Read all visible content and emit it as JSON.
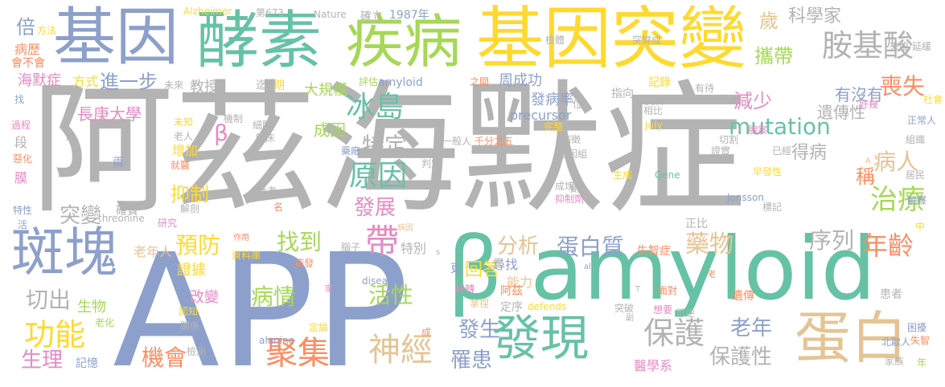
{
  "words": [
    {
      "text": "阿茲海默症",
      "color": "#b3b3b3"
    },
    {
      "text": "APP",
      "color": "#8da0cb"
    },
    {
      "text": "β amyloid",
      "color": "#66c2a5"
    },
    {
      "text": "基因突變",
      "color": "#ffd92f"
    },
    {
      "text": "酵素",
      "color": "#66c2a5"
    },
    {
      "text": "疾病",
      "color": "#a6d854"
    },
    {
      "text": "基因",
      "color": "#8da0cb"
    },
    {
      "text": "斑塊",
      "color": "#8da0cb"
    },
    {
      "text": "蛋白",
      "color": "#e5c494"
    },
    {
      "text": "發現",
      "color": "#66c2a5"
    },
    {
      "text": "胺基酸",
      "color": "#b3b3b3"
    },
    {
      "text": "冰島",
      "color": "#66c2a5"
    },
    {
      "text": "聚集",
      "color": "#fc8d62"
    },
    {
      "text": "神經",
      "color": "#e5c494"
    },
    {
      "text": "保護",
      "color": "#b3b3b3"
    },
    {
      "text": "功能",
      "color": "#ffd92f"
    },
    {
      "text": "原因",
      "color": "#66c2a5"
    },
    {
      "text": "mutation",
      "color": "#66c2a5"
    },
    {
      "text": "喪失",
      "color": "#fc8d62"
    },
    {
      "text": "治療",
      "color": "#a6d854"
    },
    {
      "text": "病人",
      "color": "#e5c494"
    },
    {
      "text": "年齡",
      "color": "#fc8d62"
    },
    {
      "text": "藥物",
      "color": "#e5c494"
    },
    {
      "text": "序列",
      "color": "#b3b3b3"
    },
    {
      "text": "蛋白質",
      "color": "#8da0cb"
    },
    {
      "text": "分析",
      "color": "#e5c494"
    },
    {
      "text": "找到",
      "color": "#a6d854"
    },
    {
      "text": "預防",
      "color": "#ffd92f"
    },
    {
      "text": "抑制",
      "color": "#ffd92f"
    },
    {
      "text": "活性",
      "color": "#a6d854"
    },
    {
      "text": "發展",
      "color": "#e78ac3"
    },
    {
      "text": "帶",
      "color": "#e78ac3"
    },
    {
      "text": "突變",
      "color": "#b3b3b3"
    },
    {
      "text": "切出",
      "color": "#b3b3b3"
    },
    {
      "text": "生理",
      "color": "#e78ac3"
    },
    {
      "text": "機會",
      "color": "#fc8d62"
    },
    {
      "text": "罹患",
      "color": "#8da0cb"
    },
    {
      "text": "發生",
      "color": "#8da0cb"
    },
    {
      "text": "老年",
      "color": "#8da0cb"
    },
    {
      "text": "保護性",
      "color": "#b3b3b3"
    },
    {
      "text": "科學家",
      "color": "#b3b3b3"
    },
    {
      "text": "進一步",
      "color": "#8da0cb"
    },
    {
      "text": "長庚大學",
      "color": "#e78ac3"
    },
    {
      "text": "減少",
      "color": "#e78ac3"
    },
    {
      "text": "特定",
      "color": "#b3b3b3"
    },
    {
      "text": "成因",
      "color": "#a6d854"
    },
    {
      "text": "回答",
      "color": "#ffd92f"
    },
    {
      "text": "病情",
      "color": "#a6d854"
    },
    {
      "text": "遺傳性",
      "color": "#b3b3b3"
    },
    {
      "text": "稱",
      "color": "#fc8d62"
    },
    {
      "text": "歲",
      "color": "#e5c494"
    },
    {
      "text": "攜帶",
      "color": "#a6d854"
    },
    {
      "text": "有沒有",
      "color": "#8da0cb"
    },
    {
      "text": "得病",
      "color": "#b3b3b3"
    },
    {
      "text": "大規模",
      "color": "#a6d854"
    },
    {
      "text": "周成功",
      "color": "#8da0cb"
    },
    {
      "text": "發病率",
      "color": "#8da0cb"
    },
    {
      "text": "海默症",
      "color": "#e78ac3"
    },
    {
      "text": "方式",
      "color": "#ffd92f"
    },
    {
      "text": "教授",
      "color": "#b3b3b3"
    },
    {
      "text": "倍",
      "color": "#8da0cb"
    },
    {
      "text": "病歷",
      "color": "#fc8d62"
    },
    {
      "text": "β",
      "color": "#e78ac3"
    },
    {
      "text": "生物",
      "color": "#a6d854"
    },
    {
      "text": "改變",
      "color": "#e78ac3"
    },
    {
      "text": "增加",
      "color": "#ffd92f"
    },
    {
      "text": "證據",
      "color": "#ffd92f"
    },
    {
      "text": "老年人",
      "color": "#e5c494"
    },
    {
      "text": "能力",
      "color": "#e5c494"
    },
    {
      "text": "特別",
      "color": "#b3b3b3"
    },
    {
      "text": "醫學系",
      "color": "#e78ac3"
    },
    {
      "text": "尋找",
      "color": "#8da0cb"
    },
    {
      "text": "失智症",
      "color": "#fc8d62"
    },
    {
      "text": "記憶",
      "color": "#8da0cb"
    },
    {
      "text": "老化",
      "color": "#a6d854"
    },
    {
      "text": "precursor",
      "color": "#8da0cb"
    },
    {
      "text": "amyloid",
      "color": "#8da0cb"
    },
    {
      "text": "評估",
      "color": "#a6d854"
    },
    {
      "text": "確立",
      "color": "#b3b3b3"
    },
    {
      "text": "1987年",
      "color": "#8da0cb"
    },
    {
      "text": "Alzheimer",
      "color": "#ffd92f"
    },
    {
      "text": "Nature",
      "color": "#b3b3b3"
    },
    {
      "text": "第673",
      "color": "#b3b3b3"
    },
    {
      "text": "threonine",
      "color": "#b3b3b3"
    },
    {
      "text": "alanine",
      "color": "#8da0cb"
    },
    {
      "text": "disease",
      "color": "#8da0cb"
    },
    {
      "text": "defends",
      "color": "#ffd92f"
    },
    {
      "text": "Jonsson",
      "color": "#8da0cb"
    },
    {
      "text": "Gene",
      "color": "#66c2a5"
    },
    {
      "text": "July",
      "color": "#ffd92f"
    },
    {
      "text": "遺傳",
      "color": "#fc8d62"
    },
    {
      "text": "家族",
      "color": "#b3b3b3"
    },
    {
      "text": "北歐人",
      "color": "#8da0cb"
    },
    {
      "text": "困擾",
      "color": "#8da0cb"
    },
    {
      "text": "失智",
      "color": "#fc8d62"
    },
    {
      "text": "患者",
      "color": "#b3b3b3"
    },
    {
      "text": "早發性",
      "color": "#ffd92f"
    },
    {
      "text": "標記",
      "color": "#b3b3b3"
    },
    {
      "text": "解釋",
      "color": "#8da0cb"
    },
    {
      "text": "組織",
      "color": "#b3b3b3"
    },
    {
      "text": "居民",
      "color": "#b3b3b3"
    },
    {
      "text": "記錄",
      "color": "#ffd92f"
    },
    {
      "text": "指向",
      "color": "#b3b3b3"
    },
    {
      "text": "突變成",
      "color": "#b3b3b3"
    },
    {
      "text": "檢體",
      "color": "#b3b3b3"
    },
    {
      "text": "延緩",
      "color": "#b3b3b3"
    },
    {
      "text": "來臨",
      "color": "#b3b3b3"
    },
    {
      "text": "正常人",
      "color": "#8da0cb"
    },
    {
      "text": "社會",
      "color": "#ffd92f"
    },
    {
      "text": "一般人",
      "color": "#b3b3b3"
    },
    {
      "text": "千分之五",
      "color": "#fc8d62"
    },
    {
      "text": "完整",
      "color": "#ffd92f"
    },
    {
      "text": "基因組",
      "color": "#b3b3b3"
    },
    {
      "text": "病徵",
      "color": "#b3b3b3"
    },
    {
      "text": "判定",
      "color": "#b3b3b3"
    },
    {
      "text": "細胞",
      "color": "#b3b3b3"
    },
    {
      "text": "臨床",
      "color": "#b3b3b3"
    },
    {
      "text": "機制",
      "color": "#b3b3b3"
    },
    {
      "text": "老人",
      "color": "#b3b3b3"
    },
    {
      "text": "未知",
      "color": "#ffd92f"
    },
    {
      "text": "就醫",
      "color": "#fc8d62"
    },
    {
      "text": "解剖",
      "color": "#b3b3b3"
    },
    {
      "text": "確實",
      "color": "#b3b3b3"
    },
    {
      "text": "兩",
      "color": "#8da0cb"
    },
    {
      "text": "藥廠",
      "color": "#8da0cb"
    },
    {
      "text": "腦子",
      "color": "#b3b3b3"
    },
    {
      "text": "資料庫",
      "color": "#ffd92f"
    },
    {
      "text": "作用",
      "color": "#fc8d62"
    },
    {
      "text": "認知",
      "color": "#ffd92f"
    },
    {
      "text": "關係",
      "color": "#b3b3b3"
    },
    {
      "text": "定論",
      "color": "#ffd92f"
    },
    {
      "text": "檢測",
      "color": "#b3b3b3"
    },
    {
      "text": "實驗",
      "color": "#b3b3b3"
    },
    {
      "text": "病發",
      "color": "#fc8d62"
    },
    {
      "text": "病因",
      "color": "#e5c494"
    },
    {
      "text": "成",
      "color": "#fc8d62"
    },
    {
      "text": "面對",
      "color": "#fc8d62"
    },
    {
      "text": "可逆",
      "color": "#b3b3b3"
    },
    {
      "text": "想要",
      "color": "#e78ac3"
    },
    {
      "text": "突破",
      "color": "#b3b3b3"
    },
    {
      "text": "好轉",
      "color": "#e78ac3"
    },
    {
      "text": "拿捏",
      "color": "#e5c494"
    },
    {
      "text": "定序",
      "color": "#b3b3b3"
    },
    {
      "text": "阿茲",
      "color": "#fc8d62"
    },
    {
      "text": "正比",
      "color": "#b3b3b3"
    },
    {
      "text": "更",
      "color": "#8da0cb"
    },
    {
      "text": "生成",
      "color": "#ffd92f"
    },
    {
      "text": "證實",
      "color": "#b3b3b3"
    },
    {
      "text": "已經",
      "color": "#b3b3b3"
    },
    {
      "text": "切割",
      "color": "#b3b3b3"
    },
    {
      "text": "腺案",
      "color": "#e78ac3"
    },
    {
      "text": "相比",
      "color": "#b3b3b3"
    },
    {
      "text": "資料",
      "color": "#b3b3b3"
    },
    {
      "text": "有待",
      "color": "#b3b3b3"
    },
    {
      "text": "好幾",
      "color": "#e78ac3"
    },
    {
      "text": "位",
      "color": "#b3b3b3"
    },
    {
      "text": "之間",
      "color": "#fc8d62"
    },
    {
      "text": "抑制劑",
      "color": "#e78ac3"
    },
    {
      "text": "成塊",
      "color": "#b3b3b3"
    },
    {
      "text": "參考",
      "color": "#b3b3b3"
    },
    {
      "text": "名",
      "color": "#fc8d62"
    },
    {
      "text": "研究",
      "color": "#e78ac3"
    },
    {
      "text": "迄",
      "color": "#b3b3b3"
    },
    {
      "text": "期",
      "color": "#ffd92f"
    },
    {
      "text": "未來",
      "color": "#b3b3b3"
    },
    {
      "text": "方法",
      "color": "#ffd92f"
    },
    {
      "text": "會不會",
      "color": "#fc8d62"
    },
    {
      "text": "段",
      "color": "#b3b3b3"
    },
    {
      "text": "說",
      "color": "#b3b3b3"
    },
    {
      "text": "過程",
      "color": "#e78ac3"
    },
    {
      "text": "惡化",
      "color": "#fc8d62"
    },
    {
      "text": "膜",
      "color": "#e78ac3"
    },
    {
      "text": "特性",
      "color": "#8da0cb"
    },
    {
      "text": "活",
      "color": "#8da0cb"
    },
    {
      "text": "找",
      "color": "#8da0cb"
    },
    {
      "text": "中",
      "color": "#ffd92f"
    },
    {
      "text": "年",
      "color": "#a6d854"
    },
    {
      "text": "家",
      "color": "#e78ac3"
    },
    {
      "text": "副",
      "color": "#b3b3b3"
    },
    {
      "text": "T",
      "color": "#b3b3b3"
    },
    {
      "text": "al",
      "color": "#8da0cb"
    },
    {
      "text": "老",
      "color": "#fc8d62"
    },
    {
      "text": "A",
      "color": "#e5c494"
    },
    {
      "text": "s",
      "color": "#b3b3b3"
    }
  ]
}
